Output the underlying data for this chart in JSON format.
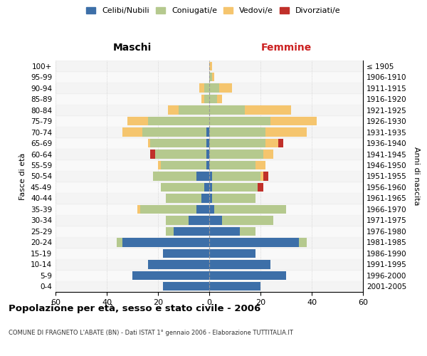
{
  "age_groups": [
    "0-4",
    "5-9",
    "10-14",
    "15-19",
    "20-24",
    "25-29",
    "30-34",
    "35-39",
    "40-44",
    "45-49",
    "50-54",
    "55-59",
    "60-64",
    "65-69",
    "70-74",
    "75-79",
    "80-84",
    "85-89",
    "90-94",
    "95-99",
    "100+"
  ],
  "birth_years": [
    "2001-2005",
    "1996-2000",
    "1991-1995",
    "1986-1990",
    "1981-1985",
    "1976-1980",
    "1971-1975",
    "1966-1970",
    "1961-1965",
    "1956-1960",
    "1951-1955",
    "1946-1950",
    "1941-1945",
    "1936-1940",
    "1931-1935",
    "1926-1930",
    "1921-1925",
    "1916-1920",
    "1911-1915",
    "1906-1910",
    "≤ 1905"
  ],
  "colors": {
    "celibi": "#3d6fa8",
    "coniugati": "#b5c98e",
    "vedovi": "#f5c56e",
    "divorziati": "#c0302a"
  },
  "males": {
    "celibi": [
      18,
      30,
      24,
      18,
      34,
      14,
      8,
      5,
      3,
      2,
      5,
      1,
      1,
      1,
      1,
      0,
      0,
      0,
      0,
      0,
      0
    ],
    "coniugati": [
      0,
      0,
      0,
      0,
      2,
      3,
      9,
      22,
      14,
      17,
      17,
      18,
      20,
      22,
      25,
      24,
      12,
      2,
      2,
      0,
      0
    ],
    "vedovi": [
      0,
      0,
      0,
      0,
      0,
      0,
      0,
      1,
      0,
      0,
      0,
      1,
      0,
      1,
      8,
      8,
      4,
      1,
      2,
      0,
      0
    ],
    "divorziati": [
      0,
      0,
      0,
      0,
      0,
      0,
      0,
      0,
      0,
      0,
      0,
      0,
      2,
      0,
      0,
      0,
      0,
      0,
      0,
      0,
      0
    ]
  },
  "females": {
    "celibi": [
      20,
      30,
      24,
      18,
      35,
      12,
      5,
      2,
      1,
      1,
      1,
      0,
      0,
      0,
      0,
      0,
      0,
      0,
      0,
      0,
      0
    ],
    "coniugati": [
      0,
      0,
      0,
      0,
      3,
      6,
      20,
      28,
      17,
      18,
      19,
      18,
      21,
      22,
      22,
      24,
      14,
      3,
      4,
      1,
      0
    ],
    "vedovi": [
      0,
      0,
      0,
      0,
      0,
      0,
      0,
      0,
      0,
      0,
      1,
      4,
      4,
      5,
      16,
      18,
      18,
      2,
      5,
      1,
      1
    ],
    "divorziati": [
      0,
      0,
      0,
      0,
      0,
      0,
      0,
      0,
      0,
      2,
      2,
      0,
      0,
      2,
      0,
      0,
      0,
      0,
      0,
      0,
      0
    ]
  },
  "xlim": 60,
  "title": "Popolazione per età, sesso e stato civile - 2006",
  "subtitle": "COMUNE DI FRAGNETO L'ABATE (BN) - Dati ISTAT 1° gennaio 2006 - Elaborazione TUTTITALIA.IT",
  "ylabel_left": "Fasce di età",
  "ylabel_right": "Anni di nascita",
  "xlabel_left": "Maschi",
  "xlabel_right": "Femmine",
  "legend_labels": [
    "Celibi/Nubili",
    "Coniugati/e",
    "Vedovi/e",
    "Divorziati/e"
  ],
  "bg_color": "#ffffff",
  "grid_color": "#cccccc",
  "maschi_color": "#000000",
  "femmine_color": "#cc2222"
}
